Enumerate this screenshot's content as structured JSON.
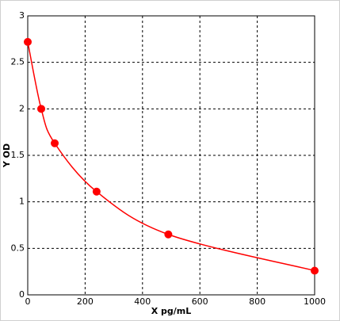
{
  "chart_data": {
    "type": "scatter",
    "x_label": "X pg/mL",
    "y_label": "Y OD",
    "x": [
      0,
      47,
      94,
      240,
      490,
      1000
    ],
    "values": [
      2.72,
      2.0,
      1.63,
      1.11,
      0.65,
      0.26
    ],
    "color": "#ff0000",
    "fit_line": true,
    "xlim": [
      0,
      1000
    ],
    "xticks": [
      0,
      200,
      400,
      600,
      800,
      1000
    ],
    "ylim": [
      0,
      3
    ],
    "yticks": [
      0,
      0.5,
      1,
      1.5,
      2,
      2.5,
      3
    ],
    "grid": true
  }
}
